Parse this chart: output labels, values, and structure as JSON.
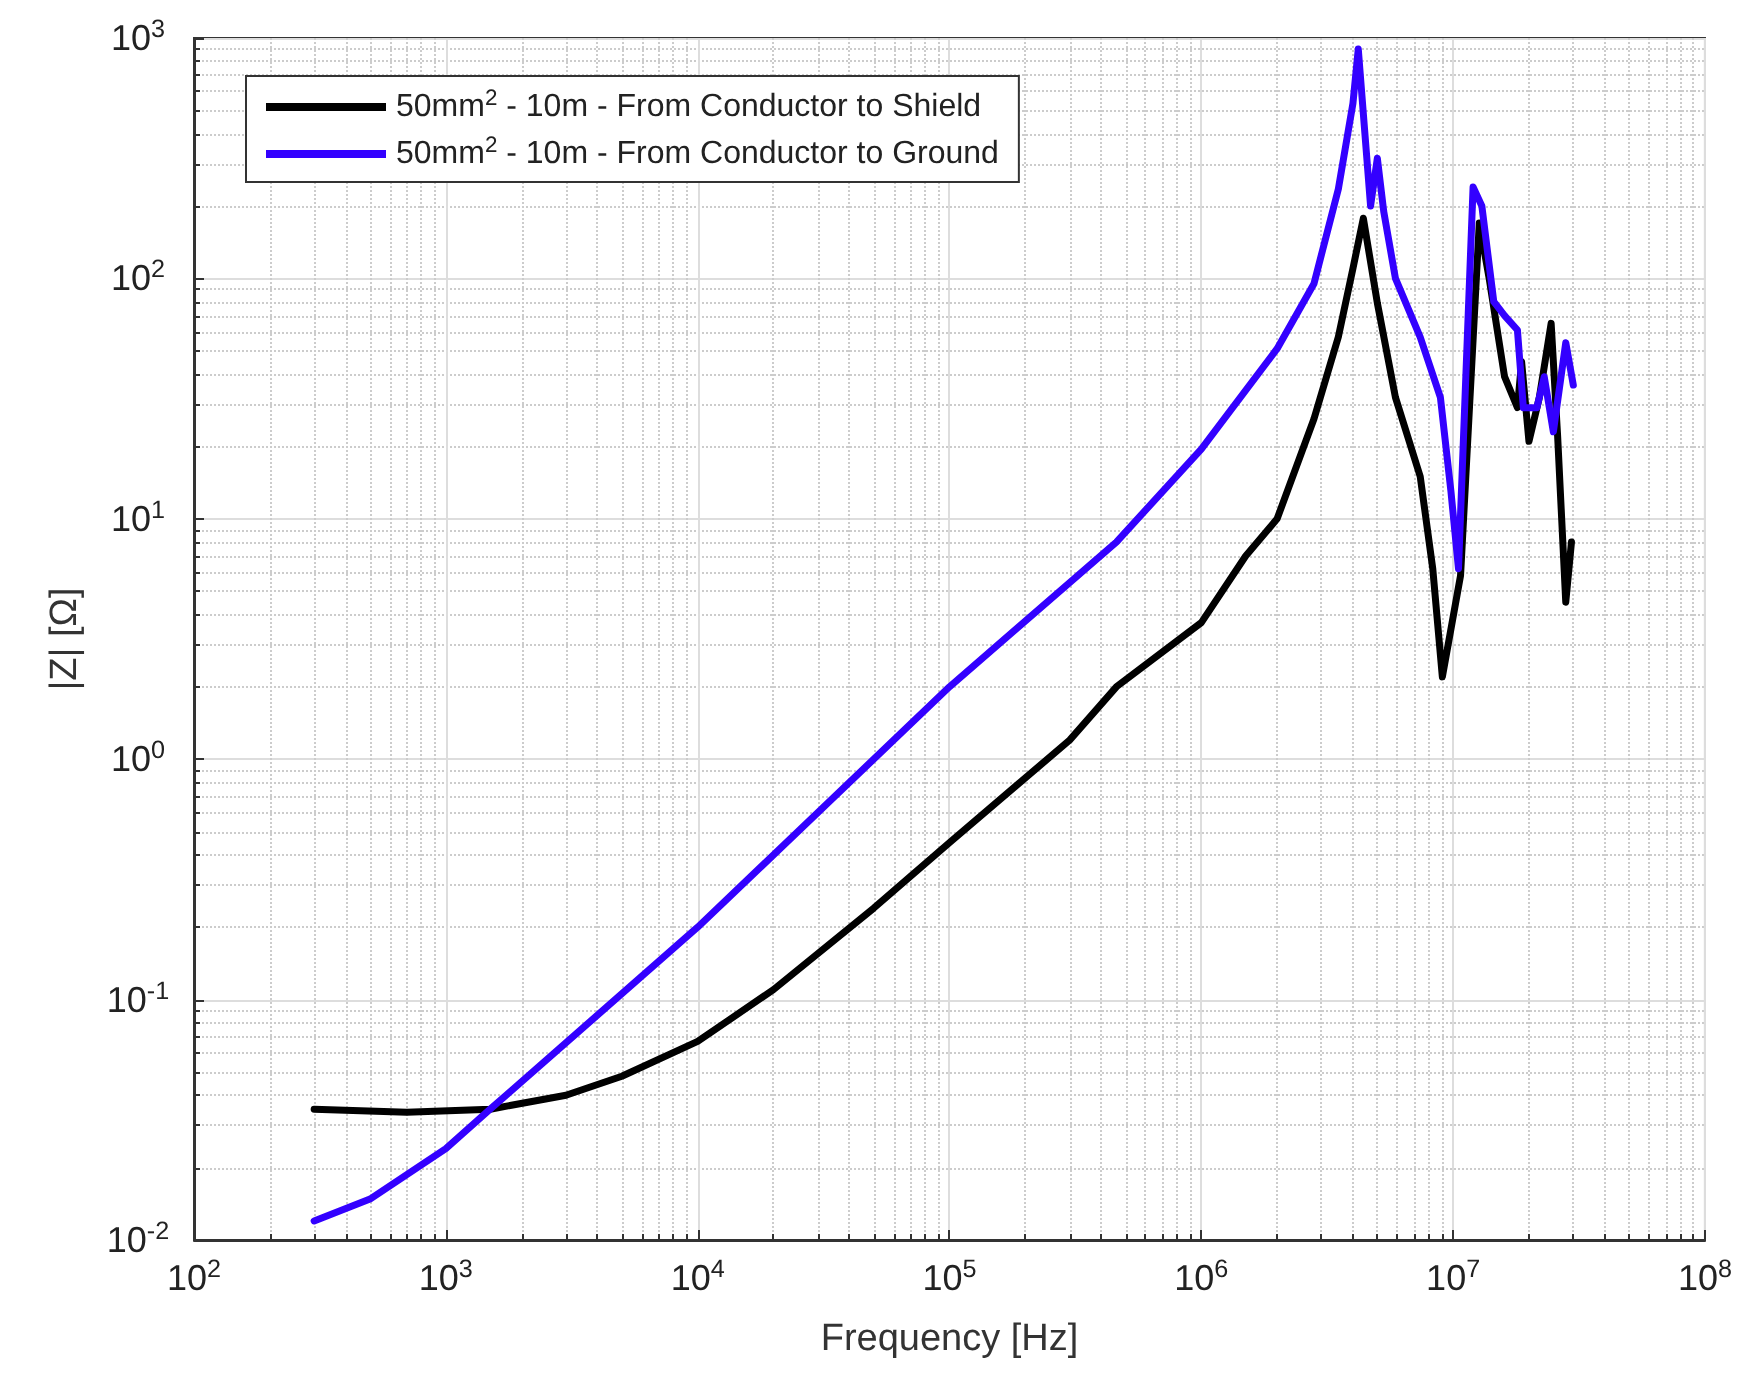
{
  "chart_data": {
    "type": "line",
    "xlabel": "Frequency [Hz]",
    "ylabel": "|Z| [Ω]",
    "log": "xy",
    "grid": true,
    "legend": "top left",
    "line_style": "solid",
    "marker": "none",
    "xlim": [
      100,
      100000000
    ],
    "ylim": [
      0.01,
      1000
    ],
    "xticks": [
      {
        "value": 100,
        "label": "10$^{2}$"
      },
      {
        "value": 1000,
        "label": "10$^{3}$"
      },
      {
        "value": 10000,
        "label": "10$^{4}$"
      },
      {
        "value": 100000,
        "label": "10$^{5}$"
      },
      {
        "value": 1000000,
        "label": "10$^{6}$"
      },
      {
        "value": 10000000,
        "label": "10$^{7}$"
      },
      {
        "value": 100000000,
        "label": "10$^{8}$"
      }
    ],
    "yticks": [
      {
        "value": 0.01,
        "label": "10$^{-2}$"
      },
      {
        "value": 0.1,
        "label": "10$^{-1}$"
      },
      {
        "value": 1,
        "label": "10$^{0}$"
      },
      {
        "value": 10,
        "label": "10$^{1}$"
      },
      {
        "value": 100,
        "label": "10$^{2}$"
      },
      {
        "value": 1000,
        "label": "10$^{3}$"
      }
    ],
    "series": [
      {
        "name": "50mm$^{2}$ - 10m - From Conductor to Shield",
        "color": "#000000",
        "x": [
          300,
          700,
          1500,
          3000,
          5000,
          10000,
          20000,
          50000,
          100000,
          300000,
          460000,
          1000000,
          1500000,
          2000000,
          2800000,
          3500000,
          4000000,
          4400000,
          5000000,
          5900000,
          7400000,
          8300000,
          9060000,
          10700000,
          12700000,
          13900000,
          16000000,
          18000000,
          18700000,
          20000000,
          22000000,
          24500000,
          26000000,
          28000000,
          29500000
        ],
        "values": [
          0.035,
          0.034,
          0.035,
          0.04,
          0.048,
          0.067,
          0.11,
          0.24,
          0.45,
          1.2,
          2.0,
          3.7,
          7,
          10,
          26,
          57,
          110,
          178,
          79,
          32,
          15,
          6.2,
          2.2,
          5.8,
          170,
          100,
          39,
          29,
          45,
          21,
          32,
          65,
          22,
          4.5,
          8
        ]
      },
      {
        "name": "50mm$^{2}$ - 10m - From Conductor to Ground",
        "color": "#3300ff",
        "x": [
          300,
          500,
          1000,
          1500,
          10000,
          100000,
          460000,
          1000000,
          2000000,
          2800000,
          3500000,
          4000000,
          4200000,
          4700000,
          5000000,
          5300000,
          5900000,
          7400000,
          8900000,
          9800000,
          10500000,
          12000000,
          13000000,
          14500000,
          16000000,
          18000000,
          19000000,
          21500000,
          23000000,
          25000000,
          28000000,
          30000000
        ],
        "values": [
          0.012,
          0.0148,
          0.024,
          0.035,
          0.2,
          2.0,
          8,
          19.5,
          51,
          95,
          235,
          535,
          900,
          200,
          316,
          190,
          100,
          57,
          32,
          13,
          6.2,
          240,
          200,
          80,
          70,
          61,
          29,
          29,
          39,
          23,
          54,
          36
        ]
      }
    ]
  }
}
